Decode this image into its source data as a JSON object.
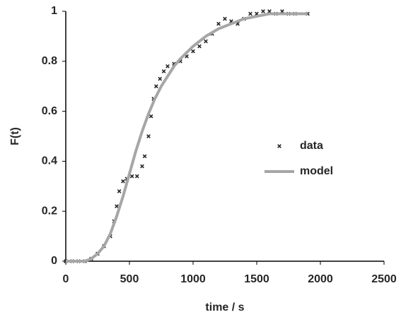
{
  "chart_data": {
    "type": "scatter",
    "xlabel": "time / s",
    "ylabel": "F(t)",
    "xlim": [
      0,
      2500
    ],
    "xticks": [
      0,
      500,
      1000,
      1500,
      2000,
      2500
    ],
    "ylim": [
      0,
      1
    ],
    "yticks": [
      0,
      0.2,
      0.4,
      0.6,
      0.8,
      1
    ],
    "legend": "right",
    "series": [
      {
        "name": "data",
        "type": "scatter",
        "color": "#262626",
        "x": [
          0,
          50,
          100,
          150,
          200,
          250,
          300,
          350,
          380,
          400,
          420,
          450,
          480,
          520,
          560,
          600,
          620,
          650,
          670,
          690,
          710,
          740,
          770,
          800,
          850,
          900,
          950,
          1000,
          1050,
          1100,
          1150,
          1200,
          1250,
          1300,
          1350,
          1400,
          1450,
          1500,
          1550,
          1600,
          1650,
          1700,
          1750,
          1800,
          1900
        ],
        "values": [
          0,
          0,
          0,
          0,
          0.01,
          0.03,
          0.06,
          0.1,
          0.16,
          0.22,
          0.28,
          0.32,
          0.33,
          0.34,
          0.34,
          0.38,
          0.42,
          0.5,
          0.58,
          0.65,
          0.7,
          0.73,
          0.76,
          0.78,
          0.79,
          0.8,
          0.82,
          0.84,
          0.86,
          0.88,
          0.91,
          0.95,
          0.97,
          0.96,
          0.95,
          0.97,
          0.99,
          0.99,
          1,
          1,
          0.99,
          1,
          0.99,
          0.99,
          0.99
        ]
      },
      {
        "name": "model",
        "type": "line",
        "color": "#a6a6a6",
        "x": [
          0,
          100,
          150,
          200,
          250,
          300,
          350,
          400,
          450,
          500,
          550,
          600,
          650,
          700,
          750,
          800,
          850,
          900,
          1000,
          1100,
          1200,
          1300,
          1400,
          1500,
          1600,
          1700,
          1800,
          1900
        ],
        "values": [
          0,
          0,
          0,
          0.01,
          0.03,
          0.06,
          0.11,
          0.18,
          0.26,
          0.35,
          0.44,
          0.52,
          0.59,
          0.65,
          0.7,
          0.74,
          0.78,
          0.81,
          0.86,
          0.9,
          0.93,
          0.95,
          0.97,
          0.98,
          0.99,
          0.99,
          0.99,
          0.99
        ]
      }
    ]
  }
}
